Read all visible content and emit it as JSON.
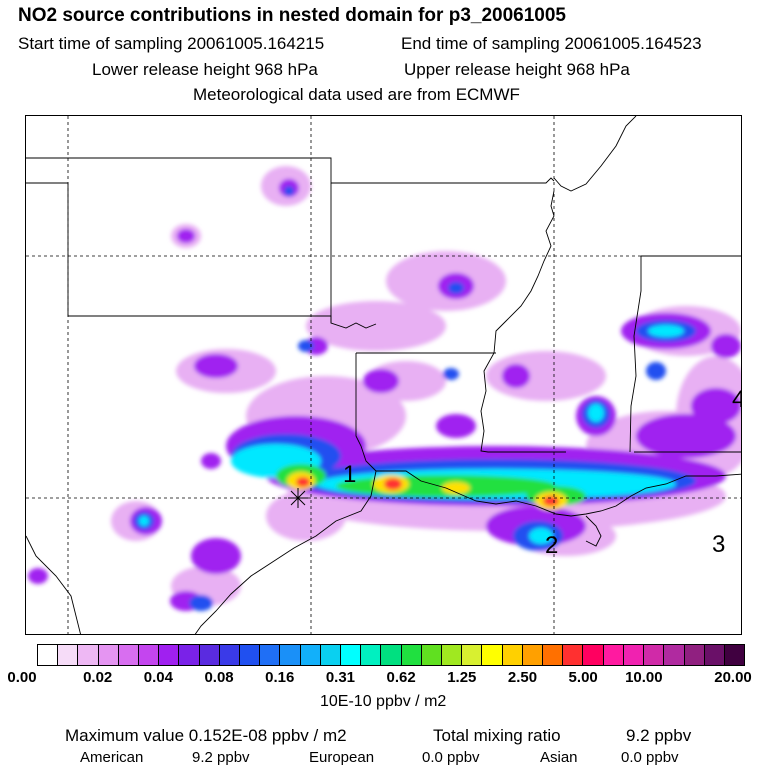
{
  "header": {
    "title": "NO2 source contributions in nested domain for p3_20061005",
    "start_label": "Start time of sampling 20061005.164215",
    "end_label": "End time of sampling 20061005.164523",
    "lower_label": "Lower release height  968 hPa",
    "upper_label": "Upper release height  968 hPa",
    "met_label": "Meteorological data used are from ECMWF"
  },
  "map": {
    "region_labels": [
      "1",
      "2",
      "3",
      "4"
    ],
    "source_marker": "star-marker-icon"
  },
  "colorbar": {
    "colors": [
      "#ffffff",
      "#f6dcf8",
      "#eeb8f4",
      "#e595f2",
      "#d86ef0",
      "#c445ef",
      "#a020f0",
      "#7a22e8",
      "#5a2be0",
      "#3a3ae8",
      "#2050f0",
      "#1f6ff6",
      "#1a90f8",
      "#12b0fa",
      "#0ad0f0",
      "#00ffff",
      "#00f0c0",
      "#00e080",
      "#20e040",
      "#60e020",
      "#a0e820",
      "#d8f030",
      "#ffff00",
      "#ffd000",
      "#ffa000",
      "#ff7000",
      "#ff3030",
      "#ff0060",
      "#ff1aa0",
      "#f022b0",
      "#d02aa8",
      "#b02aa0",
      "#902080",
      "#6a1068",
      "#400040"
    ],
    "tick_labels": [
      "0.00",
      "0.02",
      "0.04",
      "0.08",
      "0.16",
      "0.31",
      "0.62",
      "1.25",
      "2.50",
      "5.00",
      "10.00",
      "20.00"
    ],
    "unit_label": "10E-10 ppbv / m2"
  },
  "summary": {
    "max_value": "Maximum value  0.152E-08 ppbv / m2",
    "total_mixing": "Total mixing ratio",
    "total_value": "9.2 ppbv",
    "american_label": "American",
    "american_value": "9.2 ppbv",
    "european_label": "European",
    "european_value": "0.0 ppbv",
    "asian_label": "Asian",
    "asian_value": "0.0 ppbv"
  }
}
